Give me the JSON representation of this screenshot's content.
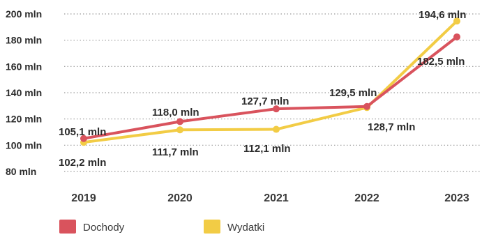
{
  "chart_data": {
    "type": "line",
    "title": "",
    "xlabel": "",
    "ylabel": "",
    "categories": [
      "2019",
      "2020",
      "2021",
      "2022",
      "2023"
    ],
    "ylim": [
      80,
      200
    ],
    "yticks": [
      {
        "value": 200,
        "label": "200 mln"
      },
      {
        "value": 180,
        "label": "180 mln"
      },
      {
        "value": 160,
        "label": "160 mln"
      },
      {
        "value": 140,
        "label": "140 mln"
      },
      {
        "value": 120,
        "label": "120 mln"
      },
      {
        "value": 100,
        "label": "100 mln"
      },
      {
        "value": 80,
        "label": "80 mln"
      }
    ],
    "grid": true,
    "legend_position": "bottom-left",
    "series": [
      {
        "name": "Dochody",
        "color": "#d9535d",
        "values": [
          105.1,
          118.0,
          127.7,
          129.5,
          182.5
        ],
        "labels": [
          "105,1 mln",
          "118,0 mln",
          "127,7 mln",
          "129,5 mln",
          "182,5 mln"
        ]
      },
      {
        "name": "Wydatki",
        "color": "#f2cc45",
        "values": [
          102.2,
          111.7,
          112.1,
          128.7,
          194.6
        ],
        "labels": [
          "102,2 mln",
          "111,7 mln",
          "112,1 mln",
          "128,7 mln",
          "194,6 mln"
        ]
      }
    ]
  }
}
